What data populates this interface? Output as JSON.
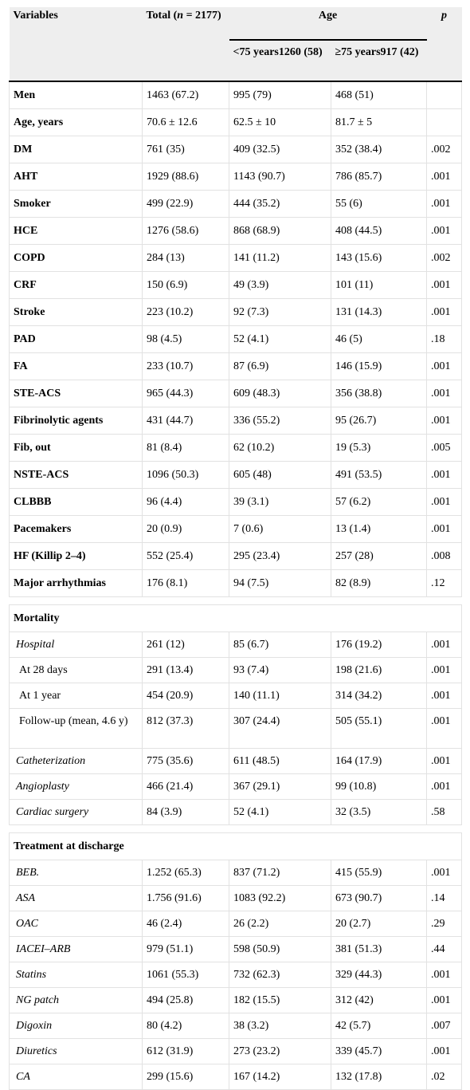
{
  "header": {
    "variables": "Variables",
    "total_prefix": "Total (",
    "total_n": "n",
    "total_suffix": " = 2177)",
    "age": "Age",
    "p": "p",
    "under75": "<75 years1260 (58)",
    "over75": "≥75 years917 (42)"
  },
  "rows": [
    {
      "label": "Men",
      "total": "1463 (67.2)",
      "under75": "995 (79)",
      "over75": "468 (51)",
      "p": ""
    },
    {
      "label": "Age, years",
      "total": "70.6 ± 12.6",
      "under75": "62.5 ± 10",
      "over75": "81.7 ± 5",
      "p": ""
    },
    {
      "label": "DM",
      "total": "761 (35)",
      "under75": "409 (32.5)",
      "over75": "352 (38.4)",
      "p": ".002"
    },
    {
      "label": "AHT",
      "total": "1929 (88.6)",
      "under75": "1143 (90.7)",
      "over75": "786 (85.7)",
      "p": ".001"
    },
    {
      "label": "Smoker",
      "total": "499 (22.9)",
      "under75": "444 (35.2)",
      "over75": "55 (6)",
      "p": ".001"
    },
    {
      "label": "HCE",
      "total": "1276 (58.6)",
      "under75": "868 (68.9)",
      "over75": "408 (44.5)",
      "p": ".001"
    },
    {
      "label": "COPD",
      "total": "284 (13)",
      "under75": "141 (11.2)",
      "over75": "143 (15.6)",
      "p": ".002"
    },
    {
      "label": "CRF",
      "total": "150 (6.9)",
      "under75": "49 (3.9)",
      "over75": "101 (11)",
      "p": ".001"
    },
    {
      "label": "Stroke",
      "total": "223 (10.2)",
      "under75": "92 (7.3)",
      "over75": "131 (14.3)",
      "p": ".001"
    },
    {
      "label": "PAD",
      "total": "98 (4.5)",
      "under75": "52 (4.1)",
      "over75": "46 (5)",
      "p": ".18"
    },
    {
      "label": "FA",
      "total": "233 (10.7)",
      "under75": "87 (6.9)",
      "over75": "146 (15.9)",
      "p": ".001"
    },
    {
      "label": "STE-ACS",
      "total": "965 (44.3)",
      "under75": "609 (48.3)",
      "over75": "356 (38.8)",
      "p": ".001"
    },
    {
      "label": "Fibrinolytic agents",
      "total": "431 (44.7)",
      "under75": "336 (55.2)",
      "over75": "95 (26.7)",
      "p": ".001"
    },
    {
      "label": "Fib, out",
      "total": "81 (8.4)",
      "under75": "62 (10.2)",
      "over75": "19 (5.3)",
      "p": ".005"
    },
    {
      "label": "NSTE-ACS",
      "total": "1096 (50.3)",
      "under75": "605 (48)",
      "over75": "491 (53.5)",
      "p": ".001"
    },
    {
      "label": "CLBBB",
      "total": "96 (4.4)",
      "under75": "39 (3.1)",
      "over75": "57 (6.2)",
      "p": ".001"
    },
    {
      "label": "Pacemakers",
      "total": "20 (0.9)",
      "under75": "7 (0.6)",
      "over75": "13 (1.4)",
      "p": ".001"
    },
    {
      "label": "HF (Killip 2–4)",
      "total": "552 (25.4)",
      "under75": "295 (23.4)",
      "over75": "257 (28)",
      "p": ".008"
    },
    {
      "label": "Major arrhythmias",
      "total": "176 (8.1)",
      "under75": "94 (7.5)",
      "over75": "82 (8.9)",
      "p": ".12"
    }
  ],
  "mortality": {
    "title": "Mortality",
    "rows": [
      {
        "label": "Hospital",
        "total": "261 (12)",
        "under75": "85 (6.7)",
        "over75": "176 (19.2)",
        "p": ".001"
      },
      {
        "label": "At 28 days",
        "total": "291 (13.4)",
        "under75": "93 (7.4)",
        "over75": "198 (21.6)",
        "p": ".001"
      },
      {
        "label": "At 1 year",
        "total": "454 (20.9)",
        "under75": "140 (11.1)",
        "over75": "314 (34.2)",
        "p": ".001"
      },
      {
        "label": "Follow-up (mean, 4.6 y)",
        "total": "812 (37.3)",
        "under75": "307 (24.4)",
        "over75": "505 (55.1)",
        "p": ".001"
      },
      {
        "label": "Catheterization",
        "total": "775 (35.6)",
        "under75": "611 (48.5)",
        "over75": "164 (17.9)",
        "p": ".001"
      },
      {
        "label": "Angioplasty",
        "total": "466 (21.4)",
        "under75": "367 (29.1)",
        "over75": "99 (10.8)",
        "p": ".001"
      },
      {
        "label": "Cardiac surgery",
        "total": "84 (3.9)",
        "under75": "52 (4.1)",
        "over75": "32 (3.5)",
        "p": ".58"
      }
    ]
  },
  "treatment": {
    "title": "Treatment at discharge",
    "rows": [
      {
        "label": "BEB.",
        "total": "1.252 (65.3)",
        "under75": "837 (71.2)",
        "over75": "415 (55.9)",
        "p": ".001"
      },
      {
        "label": "ASA",
        "total": "1.756 (91.6)",
        "under75": "1083 (92.2)",
        "over75": "673 (90.7)",
        "p": ".14"
      },
      {
        "label": "OAC",
        "total": "46 (2.4)",
        "under75": "26 (2.2)",
        "over75": "20 (2.7)",
        "p": ".29"
      },
      {
        "label": "IACEI–ARB",
        "total": "979 (51.1)",
        "under75": "598 (50.9)",
        "over75": "381 (51.3)",
        "p": ".44"
      },
      {
        "label": "Statins",
        "total": "1061 (55.3)",
        "under75": "732 (62.3)",
        "over75": "329 (44.3)",
        "p": ".001"
      },
      {
        "label": "NG patch",
        "total": "494 (25.8)",
        "under75": "182 (15.5)",
        "over75": "312 (42)",
        "p": ".001"
      },
      {
        "label": "Digoxin",
        "total": "80 (4.2)",
        "under75": "38 (3.2)",
        "over75": "42 (5.7)",
        "p": ".007"
      },
      {
        "label": "Diuretics",
        "total": "612 (31.9)",
        "under75": "273 (23.2)",
        "over75": "339 (45.7)",
        "p": ".001"
      },
      {
        "label": "CA",
        "total": "299 (15.6)",
        "under75": "167 (14.2)",
        "over75": "132 (17.8)",
        "p": ".02"
      }
    ]
  }
}
